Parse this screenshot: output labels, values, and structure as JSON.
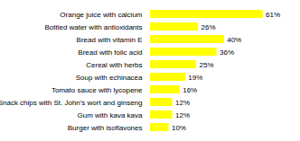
{
  "chart_data": {
    "type": "bar",
    "orientation": "horizontal",
    "categories": [
      "Burger with isoflavones",
      "Gum with kava kava",
      "Snack chips with St. John's wort and ginseng",
      "Tomato sauce with lycopene",
      "Soup with echinacea",
      "Cereal with herbs",
      "Bread with folic acid",
      "Bread with vitamin E",
      "Bottled water with antioxidants",
      "Orange juice with calcium"
    ],
    "values": [
      10,
      12,
      12,
      16,
      19,
      25,
      36,
      40,
      26,
      61
    ],
    "value_labels": [
      "10%",
      "12%",
      "12%",
      "16%",
      "19%",
      "25%",
      "36%",
      "40%",
      "26%",
      "61%"
    ],
    "data_labels": true,
    "color": "#FFFF00",
    "xlim": [
      0,
      70
    ],
    "tick_labels": "y",
    "grid": false
  }
}
